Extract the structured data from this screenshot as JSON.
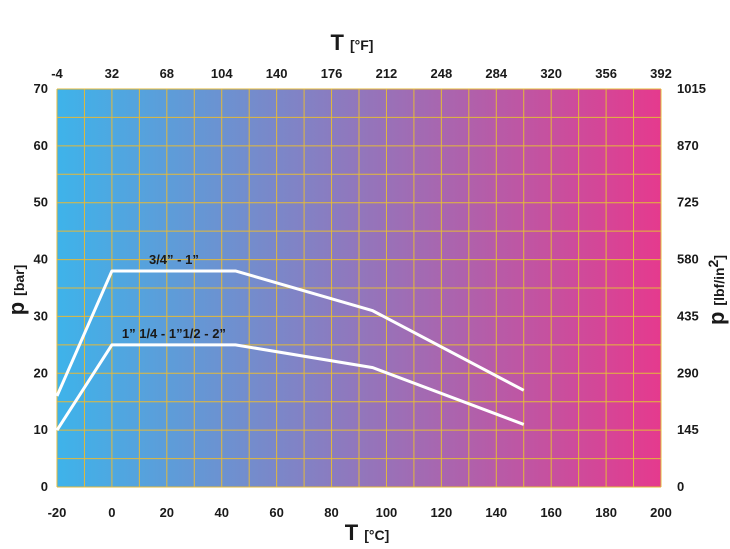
{
  "chart_data": {
    "type": "line",
    "x_bottom": {
      "symbol": "T",
      "unit": "[°C]",
      "ticks": [
        -20,
        0,
        20,
        40,
        60,
        80,
        100,
        120,
        140,
        160,
        180,
        200
      ],
      "range": [
        -20,
        200
      ]
    },
    "x_top": {
      "symbol": "T",
      "unit": "[°F]",
      "ticks": [
        -4,
        32,
        68,
        104,
        140,
        176,
        212,
        248,
        284,
        320,
        356,
        392
      ]
    },
    "y_left": {
      "symbol": "p",
      "unit": "[bar]",
      "ticks": [
        0,
        10,
        20,
        30,
        40,
        50,
        60,
        70
      ],
      "range": [
        0,
        70
      ]
    },
    "y_right": {
      "symbol": "p",
      "unit_base": "[lbf/in",
      "unit_sup": "2",
      "unit_close": "]",
      "ticks": [
        "0",
        "145",
        "290",
        "435",
        "580",
        "725",
        "870",
        "1015"
      ]
    },
    "series": [
      {
        "name": "3/4” - 1”",
        "x": [
          -20,
          0,
          45,
          95,
          150
        ],
        "y": [
          16,
          38,
          38,
          31,
          17
        ]
      },
      {
        "name": "1” 1/4 - 1”1/2 - 2”",
        "x": [
          -20,
          0,
          45,
          95,
          150
        ],
        "y": [
          10,
          25,
          25,
          21,
          11
        ]
      }
    ],
    "grid": true,
    "colors": {
      "gradient_start": "#3eb3ea",
      "gradient_end": "#e53a8e",
      "grid": "#e3b93a",
      "curves": "#ffffff"
    }
  }
}
